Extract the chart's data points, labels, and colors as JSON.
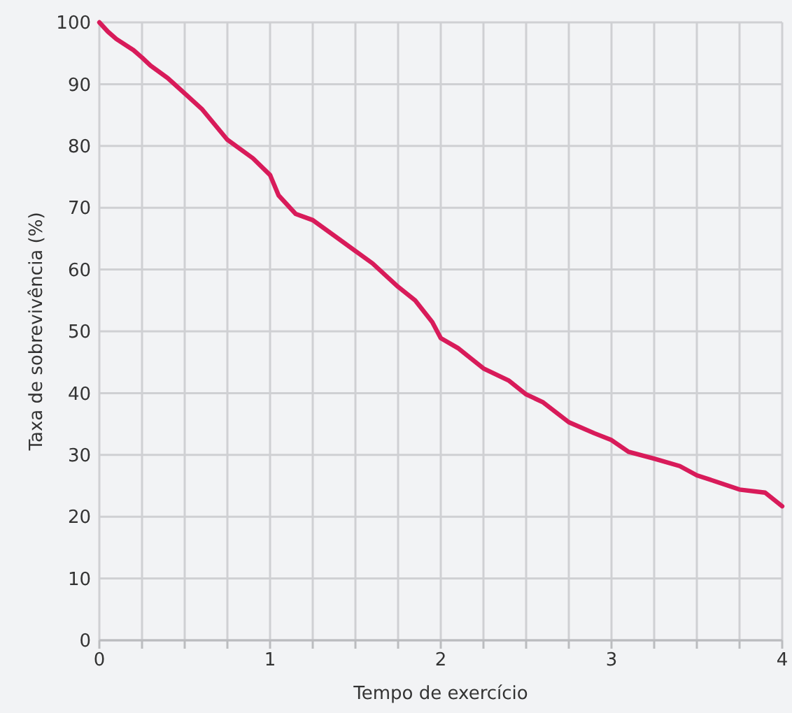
{
  "chart_data": {
    "type": "line",
    "xlabel": "Tempo de exercício",
    "ylabel": "Taxa de sobrevivência (%)",
    "x": [
      0,
      0.05,
      0.1,
      0.2,
      0.25,
      0.3,
      0.4,
      0.5,
      0.6,
      0.75,
      0.9,
      1.0,
      1.05,
      1.15,
      1.25,
      1.4,
      1.5,
      1.6,
      1.75,
      1.85,
      1.95,
      2.0,
      2.1,
      2.25,
      2.4,
      2.5,
      2.6,
      2.75,
      2.9,
      3.0,
      3.1,
      3.25,
      3.4,
      3.5,
      3.6,
      3.75,
      3.9,
      4.0
    ],
    "series": [
      {
        "color": "#d81b5a",
        "values": [
          100,
          98.5,
          97.3,
          95.5,
          94.3,
          93,
          91,
          88.5,
          86,
          81,
          78,
          75.3,
          72,
          69,
          68,
          65,
          63,
          61,
          57.2,
          55,
          51.5,
          48.9,
          47.3,
          44,
          42,
          39.8,
          38.5,
          35.3,
          33.5,
          32.4,
          30.5,
          29.4,
          28.2,
          26.7,
          25.8,
          24.4,
          23.9,
          21.7
        ]
      }
    ],
    "xlim": [
      0,
      4
    ],
    "xticks": [
      0,
      {
        "value": 0.25,
        "label": null
      },
      {
        "value": 0.5,
        "label": null
      },
      {
        "value": 0.75,
        "label": null
      },
      1,
      {
        "value": 1.25,
        "label": null
      },
      {
        "value": 1.5,
        "label": null
      },
      {
        "value": 1.75,
        "label": null
      },
      2,
      {
        "value": 2.25,
        "label": null
      },
      {
        "value": 2.5,
        "label": null
      },
      {
        "value": 2.75,
        "label": null
      },
      3,
      {
        "value": 3.25,
        "label": null
      },
      {
        "value": 3.5,
        "label": null
      },
      {
        "value": 3.75,
        "label": null
      },
      4
    ],
    "ylim": [
      0,
      100
    ],
    "yticks": [
      0,
      10,
      20,
      30,
      40,
      50,
      60,
      70,
      80,
      90,
      100
    ],
    "grid": true,
    "line_style": "solid",
    "marker": "none"
  }
}
